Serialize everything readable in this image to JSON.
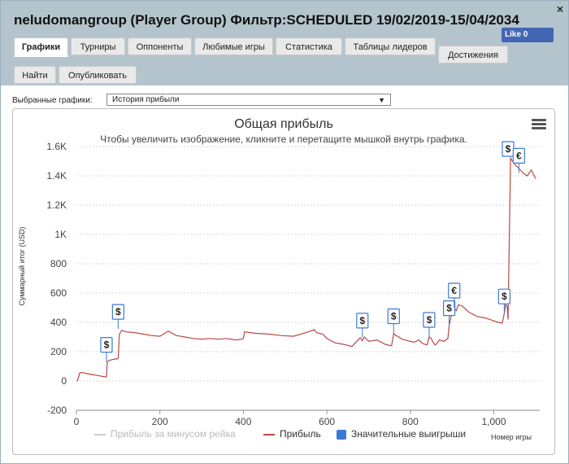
{
  "window": {
    "title": "neludomangroup (Player Group) Фильтр:SCHEDULED 19/02/2019-15/04/2034",
    "close_label": "×",
    "like_label": "Like 0"
  },
  "tabs": [
    {
      "label": "Графики",
      "active": true
    },
    {
      "label": "Турниры"
    },
    {
      "label": "Оппоненты"
    },
    {
      "label": "Любимые игры"
    },
    {
      "label": "Статистика"
    },
    {
      "label": "Таблицы лидеров"
    },
    {
      "label": "Достижения"
    },
    {
      "label": "Найти"
    },
    {
      "label": "Опубликовать"
    }
  ],
  "selector": {
    "label": "Выбранные графики:",
    "value": "История прибыли",
    "arrow": "▼"
  },
  "colors": {
    "header_bg": "#b4c4cd",
    "profit_line": "#b94747",
    "rake_line": "#cccccc",
    "big_win_marker": "#3a7bd5"
  },
  "chart_data": {
    "type": "line",
    "title": "Общая прибыль",
    "subtitle": "Чтобы увеличить изображение, кликните и перетащите мышкой внутрь графика.",
    "ylabel": "Суммарный итог (USD)",
    "xlabel": "Номер игры",
    "xlim": [
      0,
      1110
    ],
    "ylim": [
      -200,
      1600
    ],
    "x_ticks": [
      "0",
      "200",
      "400",
      "600",
      "800",
      "1,000"
    ],
    "y_ticks": [
      "-200",
      "0",
      "200",
      "400",
      "600",
      "800",
      "1K",
      "1.2K",
      "1.4K",
      "1.6K"
    ],
    "grid": true,
    "legend_position": "bottom",
    "series": [
      {
        "name": "Прибыль за минусом рейка",
        "values": []
      },
      {
        "name": "Прибыль",
        "x": [
          0,
          3,
          8,
          15,
          25,
          35,
          45,
          55,
          65,
          72,
          74,
          78,
          85,
          92,
          97,
          100,
          103,
          108,
          120,
          140,
          160,
          180,
          200,
          220,
          240,
          260,
          280,
          300,
          320,
          340,
          360,
          380,
          395,
          400,
          403,
          430,
          460,
          490,
          520,
          550,
          570,
          575,
          590,
          600,
          620,
          640,
          660,
          675,
          680,
          685,
          690,
          700,
          720,
          740,
          755,
          760,
          765,
          770,
          780,
          800,
          810,
          820,
          830,
          840,
          845,
          850,
          855,
          860,
          870,
          880,
          890,
          893,
          896,
          900,
          905,
          910,
          915,
          925,
          940,
          960,
          980,
          1000,
          1010,
          1020,
          1025,
          1028,
          1032,
          1034,
          1040,
          1050,
          1060,
          1070,
          1080,
          1090,
          1100
        ],
        "values": [
          0,
          5,
          55,
          58,
          50,
          45,
          40,
          35,
          30,
          28,
          130,
          140,
          145,
          150,
          150,
          155,
          320,
          345,
          335,
          330,
          320,
          310,
          305,
          340,
          310,
          300,
          290,
          285,
          290,
          285,
          290,
          280,
          285,
          290,
          335,
          325,
          320,
          310,
          305,
          330,
          350,
          330,
          320,
          290,
          260,
          250,
          235,
          280,
          295,
          275,
          300,
          270,
          280,
          250,
          240,
          325,
          310,
          305,
          285,
          270,
          265,
          280,
          255,
          245,
          300,
          290,
          260,
          245,
          280,
          270,
          290,
          380,
          420,
          470,
          500,
          480,
          520,
          510,
          470,
          440,
          430,
          410,
          400,
          395,
          460,
          520,
          510,
          420,
          1520,
          1480,
          1450,
          1420,
          1400,
          1440,
          1380
        ]
      },
      {
        "name": "Значительные выигрыши",
        "markers": [
          {
            "x": 72,
            "y": 130,
            "label": "$"
          },
          {
            "x": 100,
            "y": 355,
            "label": "$"
          },
          {
            "x": 685,
            "y": 295,
            "label": "$"
          },
          {
            "x": 760,
            "y": 325,
            "label": "$"
          },
          {
            "x": 845,
            "y": 300,
            "label": "$"
          },
          {
            "x": 893,
            "y": 380,
            "label": "$"
          },
          {
            "x": 905,
            "y": 500,
            "label": "€"
          },
          {
            "x": 1025,
            "y": 460,
            "label": "$"
          },
          {
            "x": 1034,
            "y": 1545,
            "label": "$"
          },
          {
            "x": 1060,
            "y": 1420,
            "label": "€"
          }
        ]
      }
    ]
  }
}
